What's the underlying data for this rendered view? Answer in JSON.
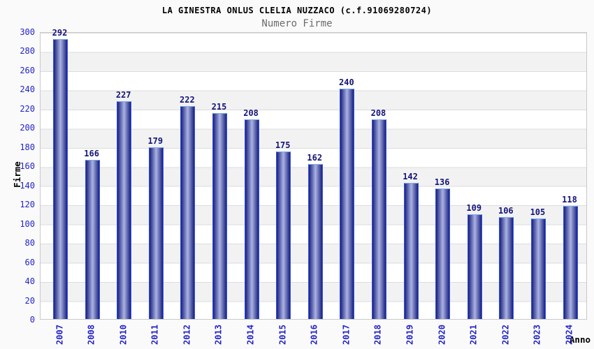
{
  "chart_data": {
    "type": "bar",
    "title": "LA GINESTRA ONLUS CLELIA NUZZACO (c.f.91069280724)",
    "subtitle": "Numero Firme",
    "xlabel": "Anno",
    "ylabel": "Firme",
    "categories": [
      "2007",
      "2008",
      "2010",
      "2011",
      "2012",
      "2013",
      "2014",
      "2015",
      "2016",
      "2017",
      "2018",
      "2019",
      "2020",
      "2021",
      "2022",
      "2023",
      "2024"
    ],
    "values": [
      292,
      166,
      227,
      179,
      222,
      215,
      208,
      175,
      162,
      240,
      208,
      142,
      136,
      109,
      106,
      105,
      118
    ],
    "ylim": [
      0,
      300
    ],
    "yticks": [
      0,
      20,
      40,
      60,
      80,
      100,
      120,
      140,
      160,
      180,
      200,
      220,
      240,
      260,
      280,
      300
    ],
    "grid": true,
    "grid_stripes": true,
    "legend": null,
    "bar_labels_shown": true
  },
  "colors": {
    "background": "#fafafa",
    "plot_white": "#ffffff",
    "plot_stripe": "#f2f2f2",
    "grid": "#dcdcdc",
    "frame": "#c9c9c9",
    "bar_border": "#2f55e8",
    "bar_cap": "#7aabf0",
    "bar_dark": "#1a1f7e",
    "bar_light": "#aab3e2",
    "tick_blue": "#2323cc",
    "value_navy": "#14147a",
    "subtitle_gray": "#6b6b6b",
    "title_black": "#000000"
  }
}
